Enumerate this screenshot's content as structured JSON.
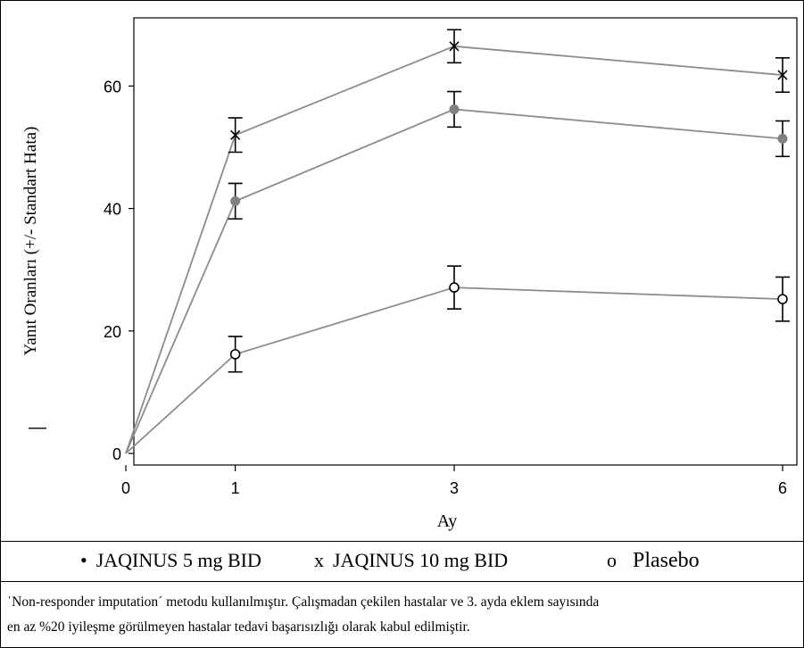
{
  "chart_data": {
    "type": "line",
    "x": [
      0,
      1,
      3,
      6
    ],
    "xticks": [
      "0",
      "1",
      "3",
      "6"
    ],
    "xlabel": "Ay",
    "ylabel": "Yanıt Oranları (+/- Standart Hata)",
    "yticks": [
      "0",
      "20",
      "40",
      "60"
    ],
    "xlim": [
      0,
      6
    ],
    "ylim": [
      -2,
      71
    ],
    "grid": false,
    "series": [
      {
        "name": "JAQINUS 5 mg BID",
        "marker": "filled-circle",
        "color": "#808080",
        "values": [
          0,
          41.2,
          56.2,
          51.4
        ],
        "errors": [
          0,
          2.9,
          2.9,
          2.9
        ]
      },
      {
        "name": "JAQINUS 10 mg BID",
        "marker": "x",
        "color": "#000000",
        "values": [
          0,
          52.0,
          66.5,
          61.8
        ],
        "errors": [
          0,
          2.8,
          2.7,
          2.8
        ]
      },
      {
        "name": "Plasebo",
        "marker": "open-circle",
        "color": "#000000",
        "values": [
          0,
          16.2,
          27.1,
          25.2
        ],
        "errors": [
          0,
          2.9,
          3.5,
          3.6
        ]
      }
    ],
    "line_color": "#8c8c8c",
    "legend_position": "bottom",
    "stray_mark": "—"
  },
  "legend": [
    {
      "symbol": "•",
      "label": "JAQINUS 5 mg BID"
    },
    {
      "symbol": "x",
      "label": "JAQINUS 10 mg BID"
    },
    {
      "symbol": "o",
      "label": "Plasebo"
    }
  ],
  "footnote": {
    "line1": "ˈNon-responder imputationˊ metodu kullanılmıştır. Çalışmadan çekilen hastalar ve  3. ayda eklem sayısında",
    "line2": "en az %20 iyileşme görülmeyen hastalar tedavi başarısızlığı olarak kabul edilmiştir."
  }
}
